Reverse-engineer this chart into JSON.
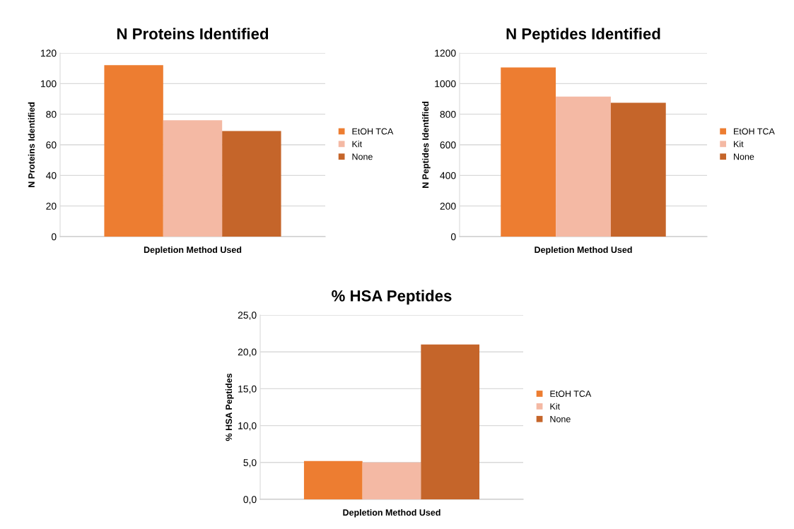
{
  "chart_data": [
    {
      "type": "bar",
      "title": "N Proteins Identified",
      "xlabel": "Depletion Method Used",
      "ylabel": "N Proteins Identified",
      "categories": [
        null
      ],
      "tick_labels": "y",
      "ylim": [
        0,
        120
      ],
      "yticks": [
        0,
        20,
        40,
        60,
        80,
        100,
        120
      ],
      "grid": "y",
      "legend": "right",
      "series": [
        {
          "name": "EtOH TCA",
          "color": "#ed7d31",
          "values": [
            112
          ]
        },
        {
          "name": "Kit",
          "color": "#f4b9a4",
          "values": [
            76
          ]
        },
        {
          "name": "None",
          "color": "#c5652a",
          "values": [
            69
          ]
        }
      ]
    },
    {
      "type": "bar",
      "title": "N Peptides Identified",
      "xlabel": "Depletion Method Used",
      "ylabel": "N Peptides Identified",
      "categories": [
        null
      ],
      "tick_labels": "y",
      "ylim": [
        0,
        1200
      ],
      "yticks": [
        0,
        200,
        400,
        600,
        800,
        1000,
        1200
      ],
      "grid": "y",
      "legend": "right",
      "series": [
        {
          "name": "EtOH TCA",
          "color": "#ed7d31",
          "values": [
            1105
          ]
        },
        {
          "name": "Kit",
          "color": "#f4b9a4",
          "values": [
            915
          ]
        },
        {
          "name": "None",
          "color": "#c5652a",
          "values": [
            875
          ]
        }
      ]
    },
    {
      "type": "bar",
      "title": "% HSA Peptides",
      "xlabel": "Depletion Method Used",
      "ylabel": "% HSA Peptides",
      "categories": [
        null
      ],
      "tick_labels": "y",
      "ylim": [
        0,
        25
      ],
      "yticks": [
        {
          "value": 0,
          "label": "0,0"
        },
        {
          "value": 5,
          "label": "5,0"
        },
        {
          "value": 10,
          "label": "10,0"
        },
        {
          "value": 15,
          "label": "15,0"
        },
        {
          "value": 20,
          "label": "20,0"
        },
        {
          "value": 25,
          "label": "25,0"
        }
      ],
      "grid": "y",
      "legend": "right",
      "series": [
        {
          "name": "EtOH TCA",
          "color": "#ed7d31",
          "values": [
            5.2
          ]
        },
        {
          "name": "Kit",
          "color": "#f4b9a4",
          "values": [
            5.0
          ]
        },
        {
          "name": "None",
          "color": "#c5652a",
          "values": [
            21.0
          ]
        }
      ]
    }
  ]
}
